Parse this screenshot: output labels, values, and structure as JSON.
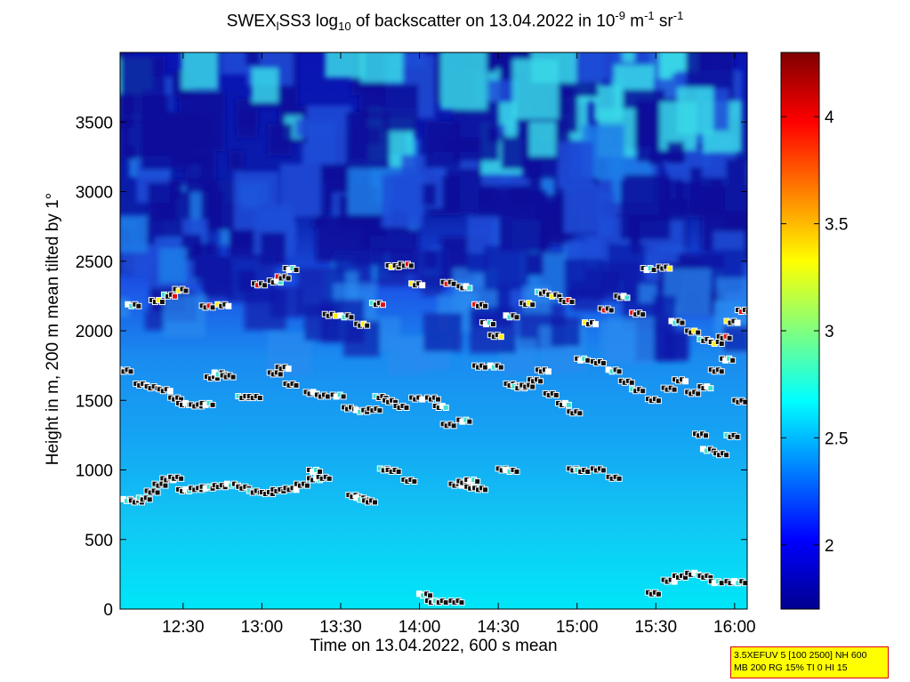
{
  "title": {
    "main": "SWEX",
    "sub1": "l",
    "mid1": "SS3 log",
    "sub2": "10",
    "mid2": " of backscatter on 13.04.2022 in 10",
    "sup1": "-9",
    "mid3": " m",
    "sup2": "-1",
    "mid4": " sr",
    "sup3": "-1"
  },
  "info_box": {
    "line1": "3.5XEFUV 5 [100 2500] NH 600",
    "line2": "MB 200 RG 15% TI 0 HI 15"
  },
  "chart_data": {
    "type": "heatmap",
    "xlabel": "Time on 13.04.2022, 600 s mean",
    "ylabel": "Height in m, 200 m mean tilted by 1°",
    "x_ticks": [
      "12:30",
      "13:00",
      "13:30",
      "14:00",
      "14:30",
      "15:00",
      "15:30",
      "16:00"
    ],
    "x_tick_hours": [
      12.5,
      13.0,
      13.5,
      14.0,
      14.5,
      15.0,
      15.5,
      16.0
    ],
    "xlim_hours": [
      12.1,
      16.08
    ],
    "y_ticks": [
      0,
      500,
      1000,
      1500,
      2000,
      2500,
      3000,
      3500
    ],
    "ylim": [
      0,
      4000
    ],
    "colorbar": {
      "ticks": [
        2,
        2.5,
        3,
        3.5,
        4
      ],
      "range": [
        1.7,
        4.3
      ],
      "colormap": "jet"
    },
    "grid": false,
    "markers": {
      "cloud_layer_low": [
        [
          12.12,
          790
        ],
        [
          12.17,
          780
        ],
        [
          12.22,
          800
        ],
        [
          12.27,
          850
        ],
        [
          12.32,
          900
        ],
        [
          12.37,
          940
        ],
        [
          12.42,
          950
        ],
        [
          12.47,
          860
        ],
        [
          12.55,
          870
        ],
        [
          12.62,
          880
        ],
        [
          12.7,
          890
        ],
        [
          12.78,
          900
        ],
        [
          12.85,
          880
        ],
        [
          12.92,
          850
        ],
        [
          13.0,
          840
        ],
        [
          13.07,
          860
        ],
        [
          13.15,
          870
        ],
        [
          13.22,
          900
        ],
        [
          13.3,
          940
        ],
        [
          13.36,
          950
        ],
        [
          13.3,
          1000
        ],
        [
          13.55,
          820
        ],
        [
          13.6,
          800
        ],
        [
          13.65,
          780
        ],
        [
          13.75,
          1010
        ],
        [
          13.8,
          1000
        ],
        [
          13.9,
          930
        ],
        [
          14.2,
          900
        ],
        [
          14.25,
          920
        ],
        [
          14.3,
          880
        ],
        [
          14.35,
          870
        ],
        [
          14.3,
          930
        ],
        [
          14.5,
          1010
        ],
        [
          14.55,
          1000
        ],
        [
          14.95,
          1010
        ],
        [
          15.0,
          1000
        ],
        [
          15.1,
          1010
        ],
        [
          15.2,
          950
        ]
      ],
      "cloud_layer_mid": [
        [
          12.0,
          1760
        ],
        [
          12.05,
          1720
        ],
        [
          12.1,
          1720
        ],
        [
          12.2,
          1620
        ],
        [
          12.27,
          1600
        ],
        [
          12.35,
          1580
        ],
        [
          12.42,
          1520
        ],
        [
          12.47,
          1480
        ],
        [
          12.55,
          1470
        ],
        [
          12.62,
          1480
        ],
        [
          12.65,
          1670
        ],
        [
          12.7,
          1700
        ],
        [
          12.75,
          1680
        ],
        [
          12.85,
          1530
        ],
        [
          12.92,
          1530
        ],
        [
          13.05,
          1700
        ],
        [
          13.1,
          1740
        ],
        [
          13.15,
          1620
        ],
        [
          13.28,
          1560
        ],
        [
          13.35,
          1540
        ],
        [
          13.45,
          1540
        ],
        [
          13.52,
          1450
        ],
        [
          13.6,
          1430
        ],
        [
          13.68,
          1440
        ],
        [
          13.72,
          1530
        ],
        [
          13.78,
          1500
        ],
        [
          13.85,
          1460
        ],
        [
          13.95,
          1520
        ],
        [
          14.05,
          1520
        ],
        [
          14.1,
          1460
        ],
        [
          14.15,
          1330
        ],
        [
          14.25,
          1360
        ],
        [
          14.35,
          1750
        ],
        [
          14.45,
          1750
        ],
        [
          14.55,
          1620
        ],
        [
          14.6,
          1600
        ],
        [
          14.65,
          1610
        ],
        [
          14.7,
          1650
        ],
        [
          14.75,
          1720
        ],
        [
          14.8,
          1550
        ],
        [
          14.88,
          1480
        ],
        [
          14.95,
          1420
        ],
        [
          15.0,
          1800
        ],
        [
          15.1,
          1780
        ],
        [
          15.2,
          1720
        ],
        [
          15.28,
          1640
        ],
        [
          15.35,
          1580
        ],
        [
          15.45,
          1510
        ],
        [
          15.55,
          1590
        ],
        [
          15.62,
          1650
        ],
        [
          15.7,
          1560
        ],
        [
          15.78,
          1600
        ],
        [
          15.85,
          1720
        ],
        [
          15.92,
          1800
        ],
        [
          15.75,
          1260
        ],
        [
          15.8,
          1150
        ],
        [
          15.88,
          1120
        ],
        [
          15.95,
          1250
        ],
        [
          16.0,
          1500
        ]
      ],
      "cloud_layer_high": [
        [
          12.15,
          2190
        ],
        [
          12.3,
          2220
        ],
        [
          12.38,
          2260
        ],
        [
          12.45,
          2300
        ],
        [
          12.62,
          2180
        ],
        [
          12.72,
          2190
        ],
        [
          12.95,
          2340
        ],
        [
          13.05,
          2360
        ],
        [
          13.1,
          2390
        ],
        [
          13.15,
          2450
        ],
        [
          13.4,
          2120
        ],
        [
          13.5,
          2110
        ],
        [
          13.6,
          2050
        ],
        [
          13.7,
          2200
        ],
        [
          13.8,
          2470
        ],
        [
          13.88,
          2480
        ],
        [
          13.95,
          2340
        ],
        [
          14.15,
          2350
        ],
        [
          14.25,
          2320
        ],
        [
          14.35,
          2190
        ],
        [
          14.4,
          2060
        ],
        [
          14.45,
          1970
        ],
        [
          14.55,
          2110
        ],
        [
          14.65,
          2200
        ],
        [
          14.75,
          2280
        ],
        [
          14.82,
          2260
        ],
        [
          14.9,
          2220
        ],
        [
          15.05,
          2060
        ],
        [
          15.15,
          2160
        ],
        [
          15.25,
          2250
        ],
        [
          15.35,
          2130
        ],
        [
          15.42,
          2450
        ],
        [
          15.52,
          2460
        ],
        [
          15.6,
          2070
        ],
        [
          15.7,
          2000
        ],
        [
          15.78,
          1940
        ],
        [
          15.85,
          1920
        ],
        [
          15.9,
          1960
        ],
        [
          15.95,
          2070
        ],
        [
          16.02,
          2150
        ]
      ],
      "surface_layer": [
        [
          14.0,
          110
        ],
        [
          14.05,
          60
        ],
        [
          14.1,
          60
        ],
        [
          14.2,
          60
        ],
        [
          15.45,
          120
        ],
        [
          15.55,
          210
        ],
        [
          15.62,
          240
        ],
        [
          15.7,
          260
        ],
        [
          15.78,
          240
        ],
        [
          15.85,
          200
        ],
        [
          15.95,
          200
        ],
        [
          16.0,
          200
        ]
      ]
    }
  }
}
